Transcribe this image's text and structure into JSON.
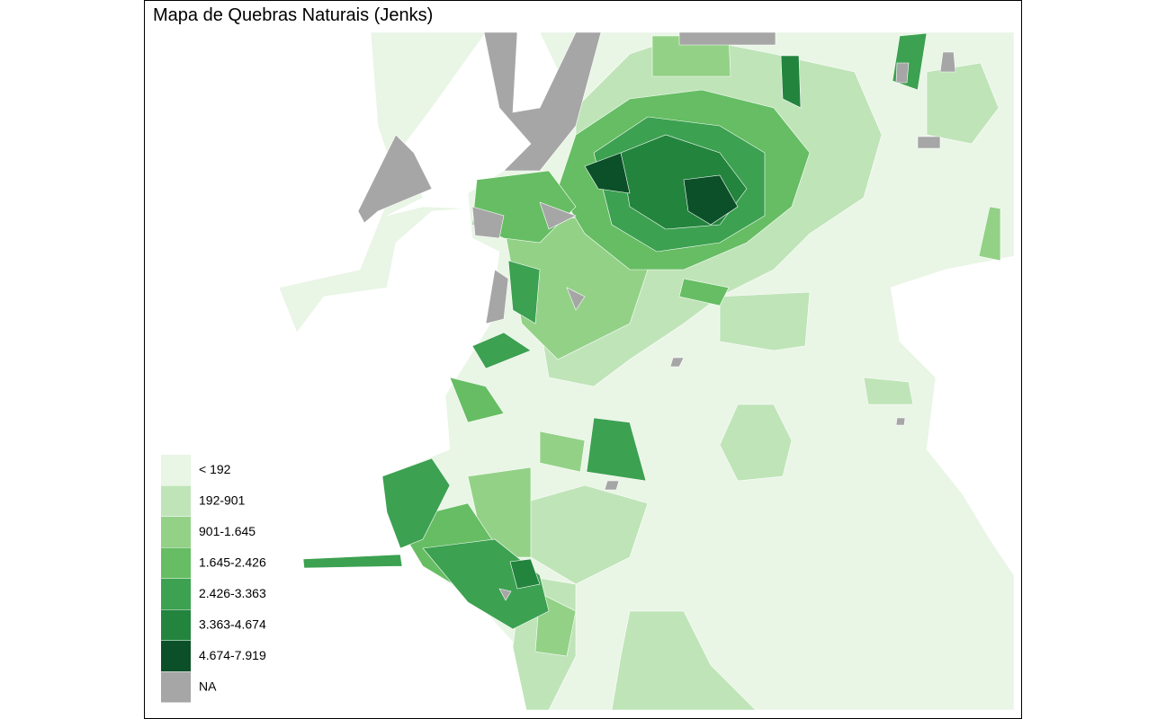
{
  "title": "Mapa de Quebras Naturais (Jenks)",
  "legend": {
    "items": [
      {
        "label": "< 192",
        "color": "#e9f5e5"
      },
      {
        "label": "192-901",
        "color": "#bfe4b8"
      },
      {
        "label": "901-1.645",
        "color": "#93d187"
      },
      {
        "label": "1.645-2.426",
        "color": "#66bd63"
      },
      {
        "label": "2.426-3.363",
        "color": "#3ca151"
      },
      {
        "label": "3.363-4.674",
        "color": "#23843e"
      },
      {
        "label": "4.674-7.919",
        "color": "#0b5028"
      },
      {
        "label": "NA",
        "color": "#a6a6a6"
      }
    ]
  }
}
